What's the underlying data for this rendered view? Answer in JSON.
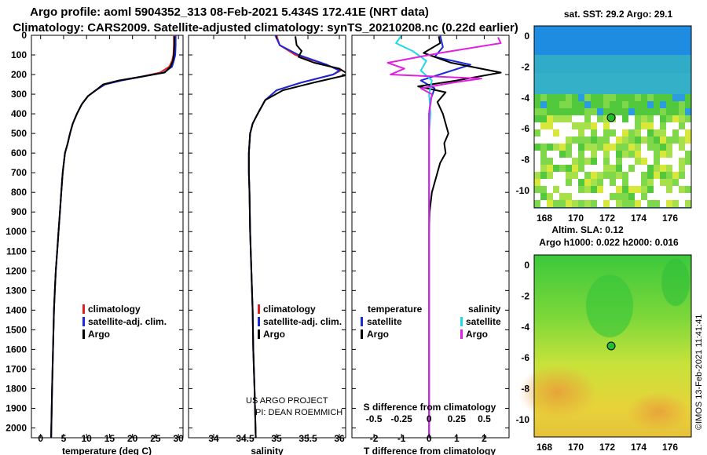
{
  "title": {
    "line1": "Argo profile: aoml 5904352_313 08-Feb-2021 5.434S 172.41E (NRT data)",
    "line2": "Climatology: CARS2009. Satellite-adjusted climatology: synTS_20210208.nc (0.22d earlier)"
  },
  "colors": {
    "climatology": "#e02020",
    "satellite": "#1a2ad8",
    "argo": "#000000",
    "sat_sal": "#22d8e8",
    "argo_sal": "#e020e0",
    "sea_blue": "#1e90e0",
    "sea_green": "#22bb33"
  },
  "chart_data": [
    {
      "type": "line",
      "name": "temperature",
      "xlabel": "temperature (deg C)",
      "ylabel": "",
      "xlim": [
        -2,
        31
      ],
      "ylim": [
        2050,
        0
      ],
      "xticks": [
        0,
        5,
        10,
        15,
        20,
        25,
        30
      ],
      "yticks": [
        0,
        100,
        200,
        300,
        400,
        500,
        600,
        700,
        800,
        900,
        1000,
        1100,
        1200,
        1300,
        1400,
        1500,
        1600,
        1700,
        1800,
        1900,
        2000
      ],
      "legend": [
        "climatology",
        "satellite-adj. clim.",
        "Argo"
      ],
      "series": [
        {
          "name": "climatology",
          "color": "#e02020",
          "x": [
            29.0,
            29.0,
            28.9,
            28.6,
            28.0,
            26.0,
            22.0,
            17.5,
            14.0,
            12.0,
            10.3,
            9.0,
            7.9,
            7.0,
            6.4,
            5.9,
            5.3,
            4.8,
            4.5,
            4.2,
            3.9,
            3.6,
            3.3,
            3.1,
            2.9,
            2.7,
            2.5,
            2.3
          ],
          "y": [
            0,
            50,
            100,
            130,
            160,
            190,
            210,
            230,
            250,
            280,
            310,
            350,
            400,
            450,
            500,
            550,
            600,
            700,
            800,
            900,
            1000,
            1100,
            1200,
            1300,
            1400,
            1600,
            1800,
            2050
          ]
        },
        {
          "name": "satellite-adj. clim.",
          "color": "#1a2ad8",
          "x": [
            29.4,
            29.4,
            29.3,
            29.0,
            28.6,
            26.8,
            22.2,
            17.6,
            14.0,
            12.0,
            10.3,
            9.0,
            7.9,
            7.0,
            6.4,
            5.9,
            5.3,
            4.8,
            4.5,
            4.2,
            3.9,
            3.6,
            3.3,
            3.1,
            2.9,
            2.7,
            2.5,
            2.3
          ],
          "y": [
            0,
            50,
            100,
            130,
            160,
            190,
            210,
            230,
            250,
            280,
            310,
            350,
            400,
            450,
            500,
            550,
            600,
            700,
            800,
            900,
            1000,
            1100,
            1200,
            1300,
            1400,
            1600,
            1800,
            2050
          ]
        },
        {
          "name": "Argo",
          "color": "#000000",
          "x": [
            29.1,
            29.1,
            29.0,
            28.8,
            28.3,
            27.0,
            22.0,
            17.0,
            13.6,
            12.0,
            10.3,
            9.0,
            7.9,
            7.0,
            6.4,
            5.9,
            5.3,
            4.8,
            4.5,
            4.2,
            3.9,
            3.6,
            3.3,
            3.1,
            2.9,
            2.7,
            2.5,
            2.3
          ],
          "y": [
            5,
            50,
            100,
            130,
            160,
            190,
            210,
            230,
            250,
            280,
            310,
            350,
            400,
            450,
            500,
            550,
            600,
            700,
            800,
            900,
            1000,
            1100,
            1200,
            1300,
            1400,
            1600,
            1800,
            2050
          ]
        }
      ]
    },
    {
      "type": "line",
      "name": "salinity",
      "xlabel": "salinity",
      "ylabel": "",
      "xlim": [
        33.6,
        36.1
      ],
      "ylim": [
        2050,
        0
      ],
      "xticks": [
        34,
        34.5,
        35,
        35.5,
        36
      ],
      "legend": [
        "climatology",
        "satellite-adj. clim.",
        "Argo"
      ],
      "annotation": [
        "US ARGO PROJECT",
        "PI: DEAN ROEMMICH"
      ],
      "series": [
        {
          "name": "climatology",
          "color": "#e02020",
          "x": [
            35.0,
            35.05,
            35.3,
            35.8,
            36.02,
            35.9,
            35.4,
            35.0,
            34.82,
            34.7,
            34.62,
            34.58,
            34.56,
            34.56,
            34.57,
            34.58,
            34.6,
            34.62,
            34.63,
            34.65,
            34.67
          ],
          "y": [
            0,
            50,
            100,
            150,
            180,
            200,
            240,
            280,
            330,
            400,
            450,
            500,
            600,
            700,
            800,
            1000,
            1200,
            1400,
            1600,
            1800,
            2050
          ]
        },
        {
          "name": "satellite-adj. clim.",
          "color": "#1a2ad8",
          "x": [
            34.98,
            35.05,
            35.35,
            35.8,
            36.0,
            35.9,
            35.4,
            35.0,
            34.82,
            34.7,
            34.62,
            34.58,
            34.56,
            34.56,
            34.57,
            34.58,
            34.6,
            34.62,
            34.63,
            34.65,
            34.67
          ],
          "y": [
            0,
            50,
            100,
            150,
            180,
            200,
            240,
            280,
            330,
            400,
            450,
            500,
            600,
            700,
            800,
            1000,
            1200,
            1400,
            1600,
            1800,
            2050
          ]
        },
        {
          "name": "Argo",
          "color": "#000000",
          "x": [
            35.3,
            35.32,
            35.4,
            35.35,
            35.6,
            36.0,
            36.15,
            35.6,
            35.1,
            34.82,
            34.7,
            34.62,
            34.58,
            34.56,
            34.56,
            34.57,
            34.58,
            34.6,
            34.62,
            34.63,
            34.65,
            34.67
          ],
          "y": [
            5,
            50,
            80,
            110,
            140,
            170,
            200,
            240,
            280,
            330,
            400,
            450,
            500,
            600,
            700,
            800,
            1000,
            1200,
            1400,
            1600,
            1800,
            2050
          ]
        }
      ]
    },
    {
      "type": "line",
      "name": "difference from climatology",
      "xlabel": "T difference from climatology",
      "x2label": "S difference from climatology",
      "xlim": [
        -2.8,
        2.9
      ],
      "ylim": [
        2050,
        0
      ],
      "xticks": [
        -2,
        -1,
        0,
        1,
        2
      ],
      "x2ticks": [
        "-0.5",
        "-0.25",
        "0",
        "0.25",
        "0.5"
      ],
      "legend_left_title": "temperature",
      "legend_right_title": "salinity",
      "legend": [
        "satellite",
        "Argo",
        "satellite",
        "Argo"
      ],
      "series": [
        {
          "name": "T satellite",
          "color": "#1a2ad8",
          "x": [
            0.4,
            0.5,
            0.2,
            1.5,
            0.6,
            -0.3,
            0.2,
            0.05,
            0,
            0,
            0,
            0,
            0,
            0,
            0
          ],
          "y": [
            0,
            60,
            110,
            150,
            190,
            230,
            270,
            330,
            400,
            600,
            800,
            1000,
            1400,
            1800,
            2050
          ]
        },
        {
          "name": "T Argo",
          "color": "#000000",
          "x": [
            0.35,
            0.4,
            -0.2,
            0.8,
            2.6,
            1.0,
            -0.4,
            0.6,
            0.3,
            0.5,
            0.6,
            0.7,
            0.55,
            0.6,
            0.4,
            0.3,
            0.2,
            0.1,
            0.02,
            0,
            0,
            0
          ],
          "y": [
            5,
            40,
            90,
            140,
            190,
            230,
            260,
            290,
            340,
            400,
            450,
            500,
            550,
            600,
            650,
            700,
            750,
            800,
            900,
            1000,
            1500,
            2050
          ]
        },
        {
          "name": "S satellite",
          "color": "#22d8e8",
          "x": [
            -1.0,
            -1.2,
            -0.6,
            -0.1,
            -0.3,
            0.1,
            0.0,
            0.05,
            0.0,
            0,
            0,
            0,
            0
          ],
          "y": [
            0,
            40,
            80,
            130,
            180,
            230,
            300,
            400,
            500,
            800,
            1200,
            1600,
            2050
          ]
        },
        {
          "name": "S Argo",
          "color": "#e020e0",
          "x": [
            2.5,
            2.6,
            0.4,
            -1.5,
            -0.9,
            -1.4,
            1.9,
            0.9,
            -0.3,
            0.1,
            0.0,
            0,
            0,
            0,
            0
          ],
          "y": [
            10,
            40,
            90,
            140,
            170,
            200,
            220,
            240,
            270,
            300,
            400,
            600,
            1000,
            1500,
            2050
          ]
        }
      ]
    }
  ],
  "maps": [
    {
      "title": "sat. SST: 29.2 Argo: 29.1",
      "xticks": [
        "168",
        "170",
        "172",
        "174",
        "176"
      ],
      "yticks": [
        "0",
        "-2",
        "-4",
        "-6",
        "-8",
        "-10"
      ]
    },
    {
      "title1": "Altim. SLA: 0.12",
      "title2": "Argo h1000: 0.022 h2000: 0.016",
      "xticks": [
        "168",
        "170",
        "172",
        "174",
        "176"
      ],
      "yticks": [
        "0",
        "-2",
        "-4",
        "-6",
        "-8",
        "-10"
      ]
    }
  ],
  "credit": "©IMOS 13-Feb-2021 11:41:41"
}
